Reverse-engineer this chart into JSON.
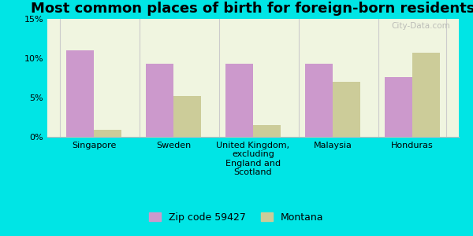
{
  "title": "Most common places of birth for foreign-born residents",
  "categories": [
    "Singapore",
    "Sweden",
    "United Kingdom,\nexcluding\nEngland and\nScotland",
    "Malaysia",
    "Honduras"
  ],
  "zip_values": [
    11.0,
    9.3,
    9.3,
    9.3,
    7.6
  ],
  "montana_values": [
    0.9,
    5.2,
    1.5,
    7.0,
    10.7
  ],
  "zip_color": "#cc99cc",
  "montana_color": "#cccc99",
  "background_color": "#00e5e5",
  "plot_bg": "#f0f5e0",
  "ylim": [
    0,
    15
  ],
  "yticks": [
    0,
    5,
    10,
    15
  ],
  "ytick_labels": [
    "0%",
    "5%",
    "10%",
    "15%"
  ],
  "legend_zip_label": "Zip code 59427",
  "legend_montana_label": "Montana",
  "bar_width": 0.35,
  "title_fontsize": 13,
  "tick_fontsize": 8,
  "legend_fontsize": 9,
  "watermark": "City-Data.com"
}
